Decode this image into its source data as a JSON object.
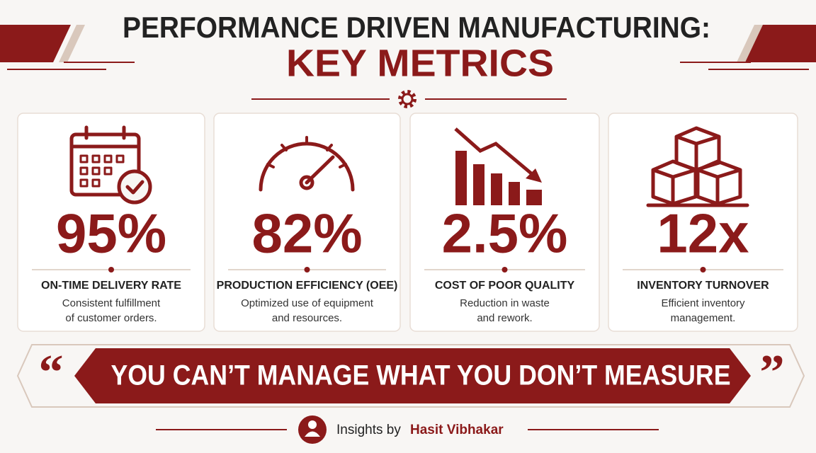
{
  "header": {
    "title": "PERFORMANCE DRIVEN MANUFACTURING:",
    "subtitle": "KEY METRICS"
  },
  "metrics": [
    {
      "value": "95%",
      "label": "ON-TIME DELIVERY RATE",
      "description": [
        "Consistent fulfillment",
        "of customer orders."
      ]
    },
    {
      "value": "82%",
      "label": "PRODUCTION EFFICIENCY (OEE)",
      "description": [
        "Optimized use of equipment",
        "and resources."
      ]
    },
    {
      "value": "2.5%",
      "label": "COST OF POOR QUALITY",
      "description": [
        "Reduction in waste",
        "and rework."
      ]
    },
    {
      "value": "12x",
      "label": "INVENTORY TURNOVER",
      "description": [
        "Efficient inventory",
        "management."
      ]
    }
  ],
  "quote": {
    "open": "“",
    "text": "YOU CAN’T MANAGE WHAT YOU DON’T MEASURE",
    "close": "”"
  },
  "footer": {
    "prefix": "Insights by",
    "author": "Hasit Vibhakar"
  }
}
